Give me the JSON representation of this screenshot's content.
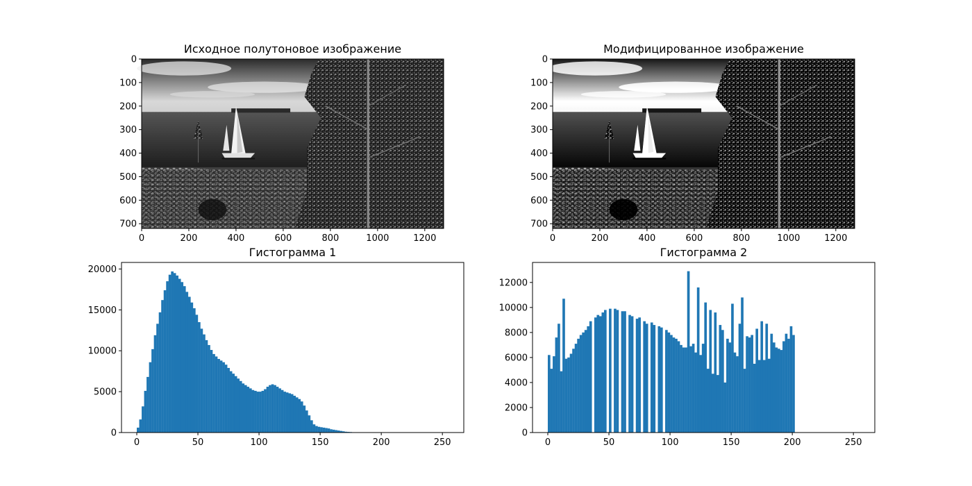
{
  "chart_data": [
    {
      "type": "image",
      "title": "Исходное полутоновое изображение",
      "x_ticks": [
        0,
        200,
        400,
        600,
        800,
        1000,
        1200
      ],
      "y_ticks": [
        0,
        100,
        200,
        300,
        400,
        500,
        600,
        700
      ],
      "xlim": [
        0,
        1280
      ],
      "ylim": [
        720,
        0
      ]
    },
    {
      "type": "image",
      "title": "Модифицированное изображение",
      "x_ticks": [
        0,
        200,
        400,
        600,
        800,
        1000,
        1200
      ],
      "y_ticks": [
        0,
        100,
        200,
        300,
        400,
        500,
        600,
        700
      ],
      "xlim": [
        0,
        1280
      ],
      "ylim": [
        720,
        0
      ]
    },
    {
      "type": "histogram",
      "title": "Гистограмма 1",
      "bar_color": "#1f77b4",
      "bin_width": 2,
      "x_start": 0,
      "values": [
        600,
        1600,
        3200,
        5100,
        6800,
        8600,
        10200,
        11900,
        13300,
        14700,
        16200,
        17400,
        18500,
        19300,
        19700,
        19500,
        19200,
        18800,
        18400,
        17900,
        17200,
        16600,
        15900,
        15200,
        14400,
        13500,
        12700,
        12000,
        11300,
        10700,
        10100,
        9600,
        9300,
        9000,
        8800,
        8600,
        8300,
        7900,
        7500,
        7200,
        6900,
        6600,
        6300,
        6000,
        5800,
        5600,
        5400,
        5200,
        5100,
        5000,
        5000,
        5100,
        5300,
        5600,
        5800,
        5900,
        5800,
        5600,
        5400,
        5200,
        5000,
        4900,
        4800,
        4700,
        4500,
        4300,
        4100,
        3800,
        3300,
        2700,
        2100,
        1500,
        1000,
        800,
        700,
        650,
        600,
        550,
        500,
        400,
        350,
        300,
        250,
        200,
        150,
        100,
        80,
        60,
        40,
        30,
        20,
        10,
        0,
        0,
        0,
        0,
        0,
        0,
        0,
        0,
        0,
        0,
        0,
        0,
        0,
        0,
        0,
        0,
        0,
        0,
        0,
        0,
        0,
        0,
        0,
        0,
        0,
        0,
        0,
        0,
        0,
        0,
        0,
        0,
        0,
        0,
        0,
        0,
        0,
        0,
        0,
        0,
        0,
        0,
        0,
        0
      ],
      "x_ticks": [
        0,
        50,
        100,
        150,
        200,
        250
      ],
      "y_ticks": [
        0,
        5000,
        10000,
        15000,
        20000
      ],
      "xlim": [
        -12.5,
        267.5
      ],
      "ylim": [
        0,
        20800
      ]
    },
    {
      "type": "histogram",
      "title": "Гистограмма 2",
      "bar_color": "#1f77b4",
      "bin_width": 2,
      "x_start": 0,
      "values": [
        6200,
        5100,
        6100,
        7600,
        8700,
        4900,
        10700,
        5900,
        6000,
        6300,
        6700,
        7100,
        7500,
        7800,
        8000,
        8200,
        8500,
        8900,
        0,
        9200,
        9400,
        9300,
        9600,
        9800,
        0,
        9900,
        0,
        9900,
        9800,
        0,
        9700,
        9700,
        0,
        9400,
        9300,
        0,
        9100,
        9200,
        0,
        8900,
        8700,
        0,
        8800,
        8600,
        0,
        8500,
        8400,
        0,
        8200,
        8000,
        7800,
        7600,
        7500,
        7300,
        7000,
        6800,
        6800,
        12900,
        6900,
        7100,
        6400,
        11600,
        6200,
        7100,
        10400,
        5100,
        9800,
        4700,
        9600,
        4600,
        8600,
        8200,
        4000,
        7500,
        7200,
        10300,
        6400,
        6100,
        8700,
        10800,
        5100,
        7700,
        7600,
        7800,
        5500,
        8300,
        5800,
        8900,
        5800,
        8700,
        5900,
        7900,
        7200,
        6800,
        6700,
        6600,
        7300,
        7900,
        7500,
        8500,
        7800,
        0,
        0,
        0,
        0,
        0,
        0,
        0,
        0,
        0,
        0,
        0,
        0,
        0,
        0,
        0,
        0,
        0,
        0,
        0,
        0,
        0,
        0,
        0,
        0,
        0,
        0,
        0,
        0,
        0
      ],
      "x_ticks": [
        0,
        50,
        100,
        150,
        200,
        250
      ],
      "y_ticks": [
        0,
        2000,
        4000,
        6000,
        8000,
        10000,
        12000
      ],
      "xlim": [
        -12.5,
        267.5
      ],
      "ylim": [
        0,
        13600
      ]
    }
  ]
}
